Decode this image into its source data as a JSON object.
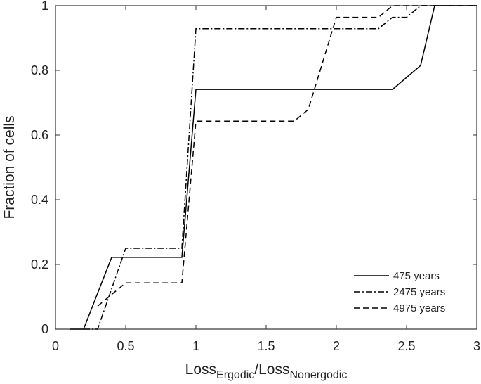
{
  "chart_data": {
    "type": "line",
    "title": "",
    "xlabel": {
      "main": "Loss",
      "sub1": "Ergodic",
      "sep": "/Loss",
      "sub2": "Nonergodic"
    },
    "ylabel": "Fraction of cells",
    "xlim": [
      0,
      3
    ],
    "ylim": [
      0,
      1
    ],
    "xticks": [
      "0",
      "0.5",
      "1",
      "1.5",
      "2",
      "2.5",
      "3"
    ],
    "yticks": [
      "0",
      "0.2",
      "0.4",
      "0.6",
      "0.8",
      "1"
    ],
    "grid": false,
    "legend_position": "bottom-right",
    "series": [
      {
        "name": "475 years",
        "line_style": "solid",
        "x": [
          0.1,
          0.2,
          0.4,
          0.9,
          1.0,
          2.4,
          2.6,
          2.7,
          3.0
        ],
        "y": [
          0,
          0,
          0.222,
          0.222,
          0.741,
          0.741,
          0.815,
          1.0,
          1.0
        ]
      },
      {
        "name": "2475 years",
        "line_style": "dashdot",
        "x": [
          0.2,
          0.3,
          0.5,
          0.9,
          1.0,
          2.3,
          2.4,
          2.5,
          2.6,
          3.0
        ],
        "y": [
          0,
          0,
          0.25,
          0.25,
          0.929,
          0.929,
          0.964,
          0.964,
          1.0,
          1.0
        ]
      },
      {
        "name": "4975 years",
        "line_style": "dashed",
        "x": [
          0.3,
          0.5,
          0.9,
          1.0,
          1.7,
          1.8,
          2.0,
          2.3,
          2.4,
          3.0
        ],
        "y": [
          0.071,
          0.143,
          0.143,
          0.643,
          0.643,
          0.679,
          0.964,
          0.964,
          1.0,
          1.0
        ]
      }
    ],
    "colors": {
      "line": "#000000",
      "axis": "#333333",
      "background": "#ffffff"
    }
  }
}
